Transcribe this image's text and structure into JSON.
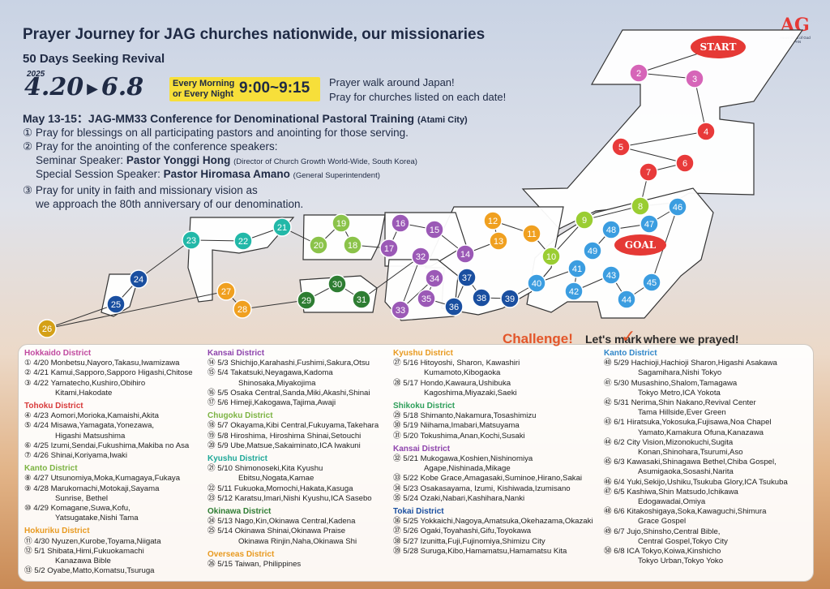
{
  "header": {
    "title": "Prayer Journey for JAG churches nationwide, our missionaries",
    "subtitle": "50 Days Seeking Revival",
    "year": "2025",
    "date_start": "4.20",
    "date_end": "6.8",
    "time_label_1": "Every Morning",
    "time_label_2": "or Every Night",
    "time": "9:00~9:15",
    "walk_1": "Prayer walk around Japan!",
    "walk_2": "Pray for churches listed on each date!"
  },
  "logo": {
    "mark_a": "A",
    "mark_g": "G",
    "line1": "Assemblies of God",
    "line2": "JAPAN"
  },
  "conference": {
    "title": "May 13-15：JAG-MM33 Conference for Denominational Pastoral Training",
    "location": "(Atami City)"
  },
  "prayers": {
    "p1": "① Pray for blessings on all participating pastors and anointing for those serving.",
    "p2": "② Pray for the anointing of the conference speakers:",
    "p2_s1_label": "Seminar Speaker: ",
    "p2_s1_name": "Pastor Yonggi Hong",
    "p2_s1_note": "(Director of Church Growth World-Wide, South Korea)",
    "p2_s2_label": "Special Session Speaker: ",
    "p2_s2_name": "Pastor Hiromasa Amano",
    "p2_s2_note": "(General Superintendent)",
    "p3a": "③ Pray for unity in faith and missionary vision as",
    "p3b": "we approach the 80th anniversary of our denomination."
  },
  "map": {
    "start": "START",
    "goal": "GOAL",
    "nodes": [
      "1",
      "2",
      "3",
      "4",
      "5",
      "6",
      "7",
      "8",
      "9",
      "10",
      "11",
      "12",
      "13",
      "14",
      "15",
      "16",
      "17",
      "18",
      "19",
      "20",
      "21",
      "22",
      "23",
      "24",
      "25",
      "26",
      "27",
      "28",
      "29",
      "30",
      "31",
      "32",
      "33",
      "34",
      "35",
      "36",
      "37",
      "38",
      "39",
      "40",
      "41",
      "42",
      "43",
      "44",
      "45",
      "46",
      "47",
      "48",
      "49"
    ]
  },
  "challenge": {
    "a": "Challenge!",
    "b": "Let's mark",
    "c": "✓",
    "d": "where we prayed!"
  },
  "colors": {
    "hokkaido": "#d665b8",
    "tohoku": "#e83a3a",
    "kanto_north": "#9acd32",
    "hokuriku": "#f0a020",
    "kansai": "#9b59b6",
    "chugoku": "#8bc34a",
    "kyushu": "#22b8a8",
    "okinawa": "#2e7d32",
    "shikoku": "#f07838",
    "tokai": "#1a4fa0",
    "kanto": "#3b9de0",
    "path": "#e5484d"
  },
  "schedule": {
    "col1": [
      {
        "h": "Hokkaido District",
        "c": "#c14aa0",
        "items": [
          [
            "① 4/20 ",
            "Monbetsu,Nayoro,Takasu,Iwamizawa"
          ],
          [
            "② 4/21 ",
            "Kamui,Sapporo,Sapporo Higashi,Chitose"
          ],
          [
            "③ 4/22 ",
            "Yamatecho,Kushiro,Obihiro"
          ],
          [
            "",
            "Kitami,Hakodate"
          ]
        ]
      },
      {
        "h": "Tohoku District",
        "c": "#d83a3a",
        "items": [
          [
            "④ 4/23 ",
            "Aomori,Morioka,Kamaishi,Akita"
          ],
          [
            "⑤ 4/24 ",
            "Misawa,Yamagata,Yonezawa,"
          ],
          [
            "",
            "Higashi Matsushima"
          ],
          [
            "⑥ 4/25 ",
            "Izumi,Sendai,Fukushima,Makiba no Asa"
          ],
          [
            "⑦ 4/26 ",
            "Shinai,Koriyama,Iwaki"
          ]
        ]
      },
      {
        "h": "Kanto District",
        "c": "#7cb342",
        "items": [
          [
            "⑧ 4/27 ",
            "Utsunomiya,Moka,Kumagaya,Fukaya"
          ],
          [
            "⑨ 4/28 ",
            "Marukomachi,Motokaji,Sayama"
          ],
          [
            "",
            "Sunrise, Bethel"
          ],
          [
            "⑩ 4/29 ",
            "Komagane,Suwa,Kofu,"
          ],
          [
            "",
            "Yatsugatake,Nishi Tama"
          ]
        ]
      },
      {
        "h": "Hokuriku District",
        "c": "#e89a20",
        "items": [
          [
            "⑪ 4/30 ",
            "Nyuzen,Kurobe,Toyama,Niigata"
          ],
          [
            "⑫ 5/1 ",
            "Shibata,Himi,Fukuokamachi"
          ],
          [
            "",
            "Kanazawa Bible"
          ],
          [
            "⑬ 5/2 ",
            "Oyabe,Matto,Komatsu,Tsuruga"
          ]
        ]
      }
    ],
    "col2": [
      {
        "h": "Kansai District",
        "c": "#8e44ad",
        "items": [
          [
            "⑭ 5/3 ",
            "Shichijo,Karahashi,Fushimi,Sakura,Otsu"
          ],
          [
            "⑮ 5/4 ",
            "Takatsuki,Neyagawa,Kadoma"
          ],
          [
            "",
            "Shinosaka,Miyakojima"
          ],
          [
            "⑯ 5/5 ",
            "Osaka Central,Sanda,Miki,Akashi,Shinai"
          ],
          [
            "⑰ 5/6 ",
            "Himeji,Kakogawa,Tajima,Awaji"
          ]
        ]
      },
      {
        "h": "Chugoku District",
        "c": "#7cb342",
        "items": [
          [
            "⑱ 5/7 ",
            "Okayama,Kibi Central,Fukuyama,Takehara"
          ],
          [
            "⑲ 5/8 ",
            "Hiroshima, Hiroshima Shinai,Setouchi"
          ],
          [
            "⑳ 5/9 ",
            "Ube,Matsue,Sakaiminato,ICA Iwakuni"
          ]
        ]
      },
      {
        "h": "Kyushu District",
        "c": "#1fa898",
        "items": [
          [
            "㉑ 5/10 ",
            "Shimonoseki,Kita Kyushu"
          ],
          [
            "",
            "Ebitsu,Nogata,Kamae"
          ],
          [
            "㉒ 5/11 ",
            "Fukuoka,Momochi,Hakata,Kasuga"
          ],
          [
            "㉓ 5/12 ",
            "Karatsu,Imari,Nishi Kyushu,ICA Sasebo"
          ]
        ]
      },
      {
        "h": "Okinawa District",
        "c": "#2e7d32",
        "items": [
          [
            "㉔ 5/13 ",
            "Nago,Kin,Okinawa Central,Kadena"
          ],
          [
            "㉕ 5/14 ",
            "Okinawa Shinai,Okinawa Praise"
          ],
          [
            "",
            "Okinawa Rinjin,Naha,Okinawa Shi"
          ]
        ]
      },
      {
        "h": "Overseas District",
        "c": "#e89a20",
        "items": [
          [
            "㉖ 5/15 ",
            "Taiwan, Philippines"
          ]
        ]
      }
    ],
    "col3": [
      {
        "h": "Kyushu District",
        "c": "#e89a20",
        "items": [
          [
            "㉗ 5/16 ",
            "Hitoyoshi, Sharon, Kawashiri"
          ],
          [
            "",
            "Kumamoto,Kibogaoka"
          ],
          [
            "㉘ 5/17 ",
            "Hondo,Kawaura,Ushibuka"
          ],
          [
            "",
            "Kagoshima,Miyazaki,Saeki"
          ]
        ]
      },
      {
        "h": "Shikoku District",
        "c": "#2e9e5a",
        "items": [
          [
            "㉙ 5/18 ",
            "Shimanto,Nakamura,Tosashimizu"
          ],
          [
            "㉚ 5/19 ",
            "Niihama,Imabari,Matsuyama"
          ],
          [
            "㉛ 5/20 ",
            "Tokushima,Anan,Kochi,Susaki"
          ]
        ]
      },
      {
        "h": "Kansai District",
        "c": "#8e44ad",
        "items": [
          [
            "㉜ 5/21 ",
            "Mukogawa,Koshien,Nishinomiya"
          ],
          [
            "",
            "Agape,Nishinada,Mikage"
          ],
          [
            "㉝ 5/22 ",
            "Kobe Grace,Amagasaki,Suminoe,Hirano,Sakai"
          ],
          [
            "㉞ 5/23 ",
            "Osakasayama, Izumi, Kishiwada,Izumisano"
          ],
          [
            "㉟ 5/24 ",
            "Ozaki,Nabari,Kashihara,Nanki"
          ]
        ]
      },
      {
        "h": "Tokai District",
        "c": "#1a4fa0",
        "items": [
          [
            "㊱ 5/25 ",
            "Yokkaichi,Nagoya,Amatsuka,Okehazama,Okazaki"
          ],
          [
            "㊲ 5/26 ",
            "Ogaki,Toyahashi,Gifu,Toyokawa"
          ],
          [
            "㊳ 5/27 ",
            "Izunitta,Fuji,Fujinomiya,Shimizu City"
          ],
          [
            "㊴ 5/28 ",
            "Suruga,Kibo,Hamamatsu,Hamamatsu Kita"
          ]
        ]
      }
    ],
    "col4": [
      {
        "h": "Kanto District",
        "c": "#2f86c9",
        "items": [
          [
            "㊵ 5/29 ",
            "Hachioji,Hachioji Sharon,Higashi Asakawa"
          ],
          [
            "",
            "Sagamihara,Nishi Tokyo"
          ],
          [
            "㊶ 5/30 ",
            "Musashino,Shalom,Tamagawa"
          ],
          [
            "",
            "Tokyo Metro,ICA Yokota"
          ],
          [
            "㊷ 5/31 ",
            "Nerima,Shin Nakano,Revival Center"
          ],
          [
            "",
            "Tama Hillside,Ever Green"
          ],
          [
            "㊸ 6/1 ",
            "Hiratsuka,Yokosuka,Fujisawa,Noa Chapel"
          ],
          [
            "",
            "Yamato,Kamakura Ofuna,Kanazawa"
          ],
          [
            "㊹ 6/2 ",
            "City Vision,Mizonokuchi,Sugita"
          ],
          [
            "",
            "Konan,Shinohara,Tsurumi,Aso"
          ],
          [
            "㊺ 6/3 ",
            "Kawasaki,Shinagawa Bethel,Chiba Gospel,"
          ],
          [
            "",
            "Asumigaoka,Sosashi,Narita"
          ],
          [
            "㊻ 6/4 ",
            "Yuki,Sekijo,Ushiku,Tsukuba Glory,ICA Tsukuba"
          ],
          [
            "㊼ 6/5 ",
            "Kashiwa,Shin Matsudo,Ichikawa"
          ],
          [
            "",
            "Edogawadai,Omiya"
          ],
          [
            "㊽ 6/6 ",
            "Kitakoshigaya,Soka,Kawaguchi,Shimura"
          ],
          [
            "",
            "Grace Gospel"
          ],
          [
            "㊾ 6/7 ",
            "Jujo,Shinsho,Central Bible,"
          ],
          [
            "",
            "Central Gospel,Tokyo City"
          ],
          [
            "㊿ 6/8 ",
            "ICA Tokyo,Koiwa,Kinshicho"
          ],
          [
            "",
            "Tokyo Urban,Tokyo Yoko"
          ]
        ]
      }
    ]
  }
}
